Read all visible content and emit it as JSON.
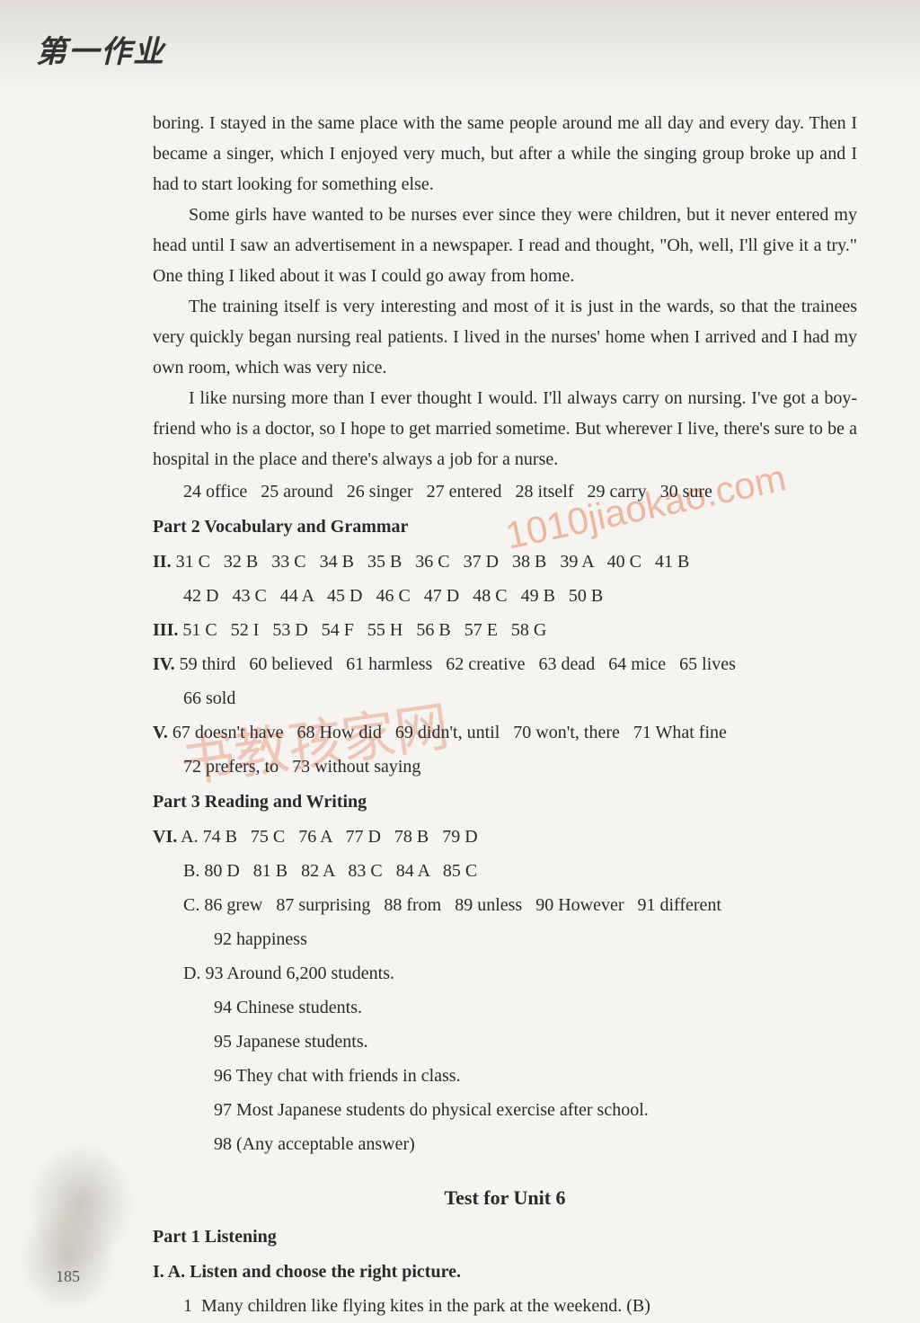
{
  "header": {
    "logo": "第一作业"
  },
  "passage": {
    "p1": "boring. I stayed in the same place with the same people around me all day and every day. Then I became a singer, which I enjoyed very much, but after a while the singing group broke up and I had to start looking for something else.",
    "p2": "Some girls have wanted to be nurses ever since they were children, but it never entered my head until I saw an advertisement in a newspaper. I read and thought, \"Oh, well, I'll give it a try.\" One thing I liked about it was I could go away from home.",
    "p3": "The training itself is very interesting and most of it is just in the wards, so that the trainees very quickly began nursing real patients. I lived in the nurses' home when I arrived and I had my own room, which was very nice.",
    "p4": "I like nursing more than I ever thought I would. I'll always carry on nursing. I've got a boy-friend who is a doctor, so I hope to get married sometime. But wherever I live, there's sure to be a hospital in the place and there's always a job for a nurse."
  },
  "answers": {
    "line24": "24 office   25 around   26 singer   27 entered   28 itself   29 carry   30 sure",
    "part2_heading": "Part 2   Vocabulary and Grammar",
    "II_label": "II.",
    "II_l1": " 31 C   32 B   33 C   34 B   35 B   36 C   37 D   38 B   39 A   40 C   41 B",
    "II_l2": "42 D   43 C   44 A   45 D   46 C   47 D   48 C   49 B   50 B",
    "III_label": "III.",
    "III_l1": " 51 C   52 I   53 D   54 F   55 H   56 B   57 E   58 G",
    "IV_label": "IV.",
    "IV_l1": " 59 third   60 believed   61 harmless   62 creative   63 dead   64 mice   65 lives",
    "IV_l2": "66 sold",
    "V_label": "V.",
    "V_l1": " 67 doesn't have   68 How did   69 didn't, until   70 won't, there   71 What fine",
    "V_l2": "72 prefers, to   73 without saying",
    "part3_heading": "Part 3   Reading and Writing",
    "VI_label": "VI.",
    "VI_A": " A. 74 B   75 C   76 A   77 D   78 B   79 D",
    "VI_B": "B. 80 D   81 B   82 A   83 C   84 A   85 C",
    "VI_C1": "C. 86 grew   87 surprising   88 from   89 unless   90 However   91 different",
    "VI_C2": "92 happiness",
    "VI_D1": "D. 93 Around 6,200 students.",
    "VI_D2": "94 Chinese students.",
    "VI_D3": "95 Japanese students.",
    "VI_D4": "96 They chat with friends in class.",
    "VI_D5": "97 Most Japanese students do physical exercise after school.",
    "VI_D6": "98 (Any acceptable answer)"
  },
  "test6": {
    "title": "Test for Unit 6",
    "part1": "Part 1   Listening",
    "IA_label": "I. A. Listen and choose the right picture.",
    "IA_1": "1  Many children like flying kites in the park at the weekend. (B)"
  },
  "watermarks": {
    "wm1": "1010jiaokao.com",
    "wm2": "书教孩家网"
  },
  "page_number": "185"
}
